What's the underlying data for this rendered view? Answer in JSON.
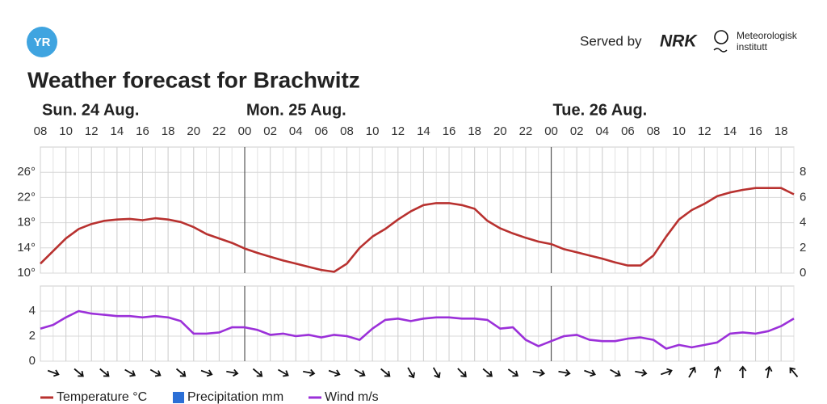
{
  "header": {
    "logo": "YR",
    "served_by": "Served by",
    "nrk": "NRK",
    "met_line1": "Meteorologisk",
    "met_line2": "institutt"
  },
  "chart_data": [
    {
      "type": "line",
      "title": "Weather forecast for Brachwitz",
      "x": [
        8,
        9,
        10,
        11,
        12,
        13,
        14,
        15,
        16,
        17,
        18,
        19,
        20,
        21,
        22,
        23,
        24,
        25,
        26,
        27,
        28,
        29,
        30,
        31,
        32,
        33,
        34,
        35,
        36,
        37,
        38,
        39,
        40,
        41,
        42,
        43,
        44,
        45,
        46,
        47,
        48,
        49,
        50,
        51,
        52,
        53,
        54,
        55,
        56,
        57,
        58,
        59,
        60,
        61,
        62,
        63,
        64,
        65,
        66,
        67
      ],
      "xlim": [
        8,
        67
      ],
      "xticks": [
        {
          "value": 8,
          "label": "08"
        },
        {
          "value": 10,
          "label": "10"
        },
        {
          "value": 12,
          "label": "12"
        },
        {
          "value": 14,
          "label": "14"
        },
        {
          "value": 16,
          "label": "16"
        },
        {
          "value": 18,
          "label": "18"
        },
        {
          "value": 20,
          "label": "20"
        },
        {
          "value": 22,
          "label": "22"
        },
        {
          "value": 24,
          "label": "00"
        },
        {
          "value": 26,
          "label": "02"
        },
        {
          "value": 28,
          "label": "04"
        },
        {
          "value": 30,
          "label": "06"
        },
        {
          "value": 32,
          "label": "08"
        },
        {
          "value": 34,
          "label": "10"
        },
        {
          "value": 36,
          "label": "12"
        },
        {
          "value": 38,
          "label": "14"
        },
        {
          "value": 40,
          "label": "16"
        },
        {
          "value": 42,
          "label": "18"
        },
        {
          "value": 44,
          "label": "20"
        },
        {
          "value": 46,
          "label": "22"
        },
        {
          "value": 48,
          "label": "00"
        },
        {
          "value": 50,
          "label": "02"
        },
        {
          "value": 52,
          "label": "04"
        },
        {
          "value": 54,
          "label": "06"
        },
        {
          "value": 56,
          "label": "08"
        },
        {
          "value": 58,
          "label": "10"
        },
        {
          "value": 60,
          "label": "12"
        },
        {
          "value": 62,
          "label": "14"
        },
        {
          "value": 64,
          "label": "16"
        },
        {
          "value": 66,
          "label": "18"
        }
      ],
      "day_labels": [
        {
          "value": 8,
          "label": "Sun. 24 Aug."
        },
        {
          "value": 24,
          "label": "Mon. 25 Aug."
        },
        {
          "value": 48,
          "label": "Tue. 26 Aug."
        }
      ],
      "ylim": [
        10,
        30
      ],
      "yticks": [
        {
          "value": 10,
          "label": "10°"
        },
        {
          "value": 14,
          "label": "14°"
        },
        {
          "value": 18,
          "label": "18°"
        },
        {
          "value": 22,
          "label": "22°"
        },
        {
          "value": 26,
          "label": "26°"
        }
      ],
      "y2lim": [
        0,
        10
      ],
      "y2ticks": [
        0,
        2,
        4,
        6,
        8
      ],
      "grid": true,
      "series": [
        {
          "name": "Temperature °C",
          "color": "#b8312f",
          "values": [
            11.5,
            13.5,
            15.5,
            17,
            17.8,
            18.3,
            18.5,
            18.6,
            18.4,
            18.7,
            18.5,
            18.1,
            17.3,
            16.2,
            15.5,
            14.8,
            13.9,
            13.2,
            12.6,
            12,
            11.5,
            11,
            10.5,
            10.2,
            11.5,
            14,
            15.8,
            17,
            18.5,
            19.8,
            20.8,
            21.1,
            21.1,
            20.8,
            20.2,
            18.3,
            17.1,
            16.3,
            15.6,
            15,
            14.6,
            13.8,
            13.3,
            12.8,
            12.3,
            11.7,
            11.2,
            11.2,
            12.8,
            15.8,
            18.5,
            20,
            21,
            22.2,
            22.8,
            23.2,
            23.5,
            23.5,
            23.5,
            22.5
          ]
        },
        {
          "name": "Precipitation mm",
          "color": "#2b6fd6",
          "type": "bar",
          "axis": "y2",
          "values": [
            0,
            0,
            0,
            0,
            0,
            0,
            0,
            0,
            0,
            0,
            0,
            0,
            0,
            0,
            0,
            0,
            0,
            0,
            0,
            0,
            0,
            0,
            0,
            0,
            0,
            0,
            0,
            0,
            0,
            0,
            0,
            0,
            0,
            0,
            0,
            0,
            0,
            0,
            0,
            0,
            0,
            0,
            0,
            0,
            0,
            0,
            0,
            0,
            0,
            0,
            0,
            0,
            0,
            0,
            0,
            0,
            0,
            0,
            0,
            0
          ]
        }
      ]
    },
    {
      "type": "line",
      "x": [
        8,
        9,
        10,
        11,
        12,
        13,
        14,
        15,
        16,
        17,
        18,
        19,
        20,
        21,
        22,
        23,
        24,
        25,
        26,
        27,
        28,
        29,
        30,
        31,
        32,
        33,
        34,
        35,
        36,
        37,
        38,
        39,
        40,
        41,
        42,
        43,
        44,
        45,
        46,
        47,
        48,
        49,
        50,
        51,
        52,
        53,
        54,
        55,
        56,
        57,
        58,
        59,
        60,
        61,
        62,
        63,
        64,
        65,
        66,
        67
      ],
      "xlim": [
        8,
        67
      ],
      "ylim": [
        0,
        6
      ],
      "yticks": [
        0,
        2,
        4
      ],
      "grid": true,
      "series": [
        {
          "name": "Wind m/s",
          "color": "#9b30d9",
          "values": [
            2.6,
            2.9,
            3.5,
            4,
            3.8,
            3.7,
            3.6,
            3.6,
            3.5,
            3.6,
            3.5,
            3.2,
            2.2,
            2.2,
            2.3,
            2.7,
            2.7,
            2.5,
            2.1,
            2.2,
            2,
            2.1,
            1.9,
            2.1,
            2,
            1.7,
            2.6,
            3.3,
            3.4,
            3.2,
            3.4,
            3.5,
            3.5,
            3.4,
            3.4,
            3.3,
            2.6,
            2.7,
            1.7,
            1.2,
            1.6,
            2,
            2.1,
            1.7,
            1.6,
            1.6,
            1.8,
            1.9,
            1.7,
            1,
            1.3,
            1.1,
            1.3,
            1.5,
            2.2,
            2.3,
            2.2,
            2.4,
            2.8,
            3.4
          ]
        }
      ],
      "wind_direction": [
        20,
        40,
        40,
        30,
        30,
        40,
        20,
        10,
        40,
        30,
        10,
        20,
        30,
        40,
        60,
        60,
        45,
        40,
        35,
        10,
        10,
        20,
        30,
        10,
        -20,
        -60,
        -80,
        -90,
        -80,
        -130
      ]
    }
  ]
}
